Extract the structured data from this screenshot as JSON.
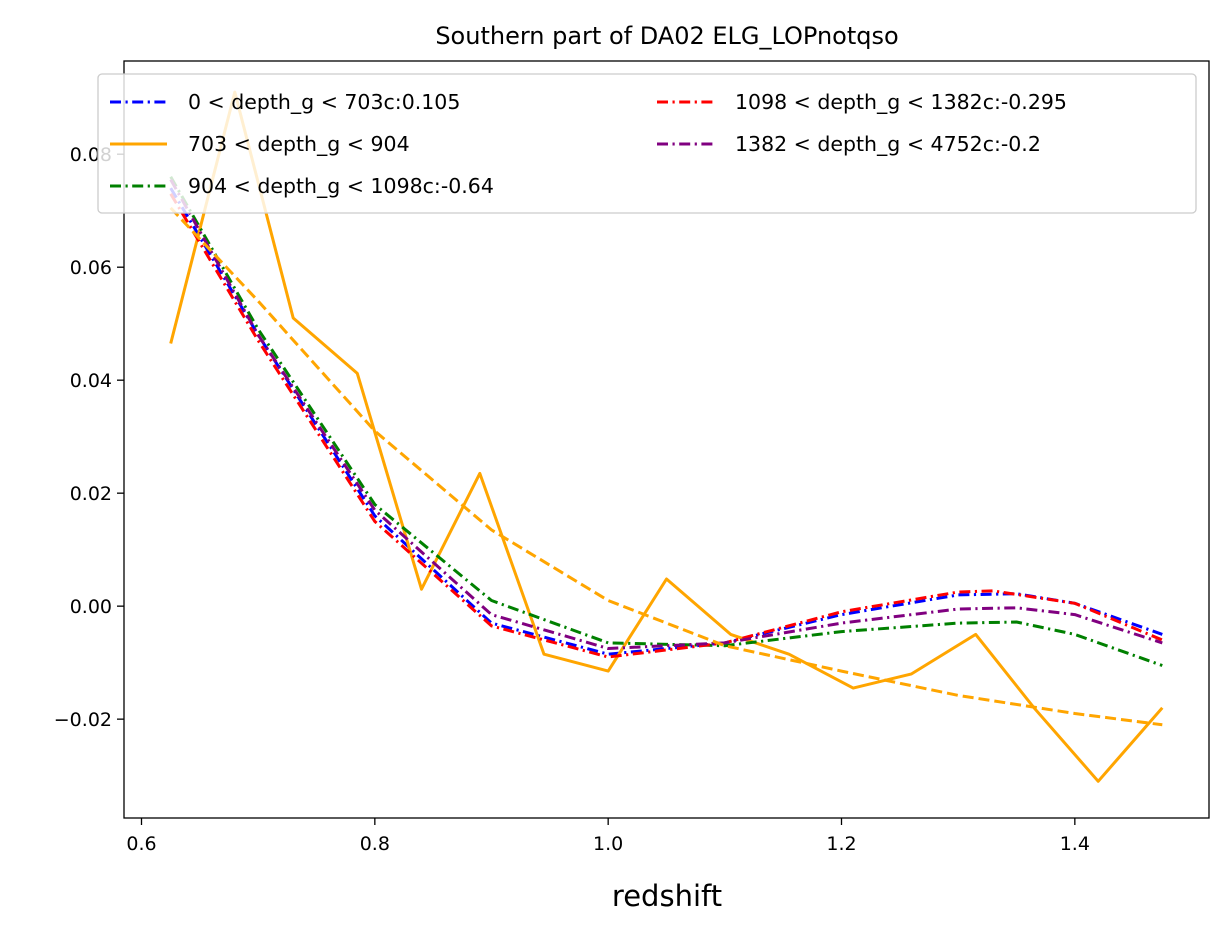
{
  "chart_data": {
    "type": "line",
    "title": "Southern part of DA02 ELG_LOPnotqso",
    "xlabel": "redshift",
    "ylabel": "",
    "xlim": [
      0.585,
      1.515
    ],
    "ylim": [
      -0.0375,
      0.0965
    ],
    "xticks": [
      0.6,
      0.8,
      1.0,
      1.2,
      1.4
    ],
    "xtick_labels": [
      "0.6",
      "0.8",
      "1.0",
      "1.2",
      "1.4"
    ],
    "yticks": [
      -0.02,
      0.0,
      0.02,
      0.04,
      0.06,
      0.08
    ],
    "ytick_labels": [
      "−0.02",
      "0.00",
      "0.02",
      "0.04",
      "0.06",
      "0.08"
    ],
    "grid": false,
    "legend_position": "upper, two columns",
    "series": [
      {
        "name": "0 < depth_g < 703c:0.105",
        "color": "#0000ff",
        "style": "dashdot",
        "in_legend": true,
        "x": [
          0.625,
          0.7,
          0.8,
          0.9,
          1.0,
          1.1,
          1.2,
          1.3,
          1.35,
          1.4,
          1.475
        ],
        "y": [
          0.074,
          0.048,
          0.016,
          -0.003,
          -0.0085,
          -0.0065,
          -0.0015,
          0.002,
          0.0022,
          0.0005,
          -0.005
        ]
      },
      {
        "name": "703 < depth_g < 904",
        "color": "#ffa500",
        "style": "solid",
        "in_legend": true,
        "x": [
          0.625,
          0.68,
          0.73,
          0.785,
          0.84,
          0.89,
          0.945,
          1.0,
          1.05,
          1.105,
          1.155,
          1.21,
          1.26,
          1.315,
          1.365,
          1.42,
          1.475
        ],
        "y": [
          0.0465,
          0.091,
          0.051,
          0.0412,
          0.003,
          0.0235,
          -0.0085,
          -0.0115,
          0.0048,
          -0.005,
          -0.0085,
          -0.0145,
          -0.012,
          -0.005,
          -0.018,
          -0.031,
          -0.018
        ]
      },
      {
        "name": "904 < depth_g < 1098c:-0.64",
        "color": "#008000",
        "style": "dashdot",
        "in_legend": true,
        "x": [
          0.625,
          0.7,
          0.8,
          0.9,
          1.0,
          1.1,
          1.2,
          1.3,
          1.35,
          1.4,
          1.475
        ],
        "y": [
          0.076,
          0.049,
          0.018,
          0.001,
          -0.0065,
          -0.007,
          -0.0045,
          -0.003,
          -0.0028,
          -0.005,
          -0.0105
        ]
      },
      {
        "name": "1098 < depth_g < 1382c:-0.295",
        "color": "#ff0000",
        "style": "dashdot",
        "in_legend": true,
        "x": [
          0.625,
          0.7,
          0.8,
          0.9,
          1.0,
          1.1,
          1.2,
          1.3,
          1.33,
          1.4,
          1.475
        ],
        "y": [
          0.073,
          0.047,
          0.015,
          -0.0035,
          -0.009,
          -0.0065,
          -0.001,
          0.0025,
          0.0027,
          0.0005,
          -0.006
        ]
      },
      {
        "name": "1382 < depth_g < 4752c:-0.2",
        "color": "#800080",
        "style": "dashdot",
        "in_legend": true,
        "x": [
          0.625,
          0.7,
          0.8,
          0.9,
          1.0,
          1.1,
          1.2,
          1.3,
          1.35,
          1.4,
          1.475
        ],
        "y": [
          0.0755,
          0.048,
          0.017,
          -0.0015,
          -0.0075,
          -0.0065,
          -0.003,
          -0.0005,
          -0.0003,
          -0.0015,
          -0.0065
        ]
      },
      {
        "name": "",
        "color": "#ffa500",
        "style": "dashed",
        "in_legend": false,
        "x": [
          0.625,
          0.7,
          0.8,
          0.9,
          1.0,
          1.1,
          1.2,
          1.3,
          1.4,
          1.475
        ],
        "y": [
          0.0705,
          0.054,
          0.031,
          0.0135,
          0.001,
          -0.007,
          -0.0115,
          -0.0158,
          -0.019,
          -0.021
        ]
      }
    ]
  }
}
